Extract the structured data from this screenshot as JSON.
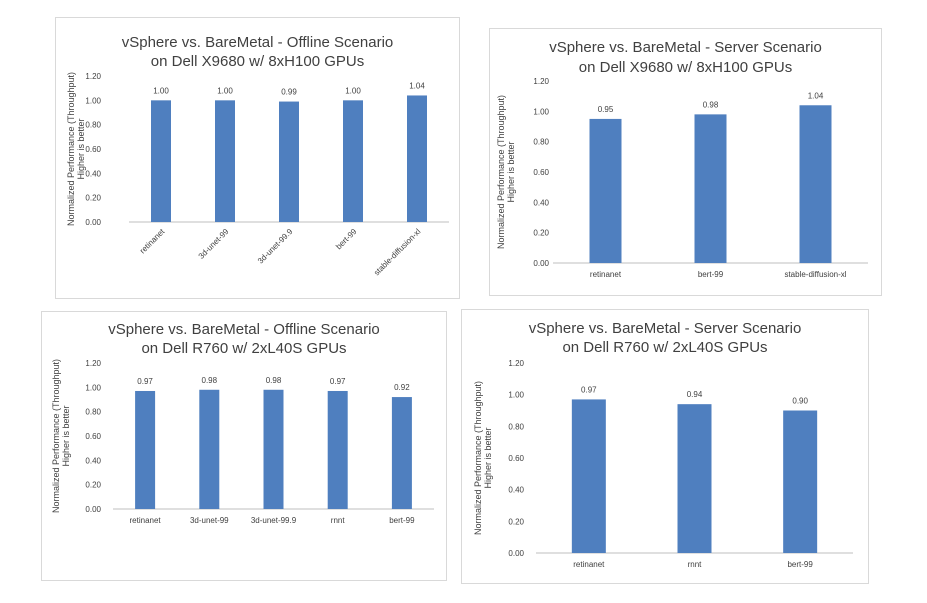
{
  "colors": {
    "bar": "#4f7fbf",
    "axis": "#bfbfbf",
    "text": "#404040"
  },
  "chart_data": [
    {
      "type": "bar",
      "title": [
        "vSphere vs. BareMetal - Offline Scenario",
        "on Dell X9680 w/ 8xH100 GPUs"
      ],
      "ylabel": [
        "Normalized Performance (Throughput)",
        "Higher is better"
      ],
      "categories": [
        "retinanet",
        "3d-unet-99",
        "3d-unet-99.9",
        "bert-99",
        "stable-diffusion-xl"
      ],
      "values": [
        1.0,
        1.0,
        0.99,
        1.0,
        1.04
      ],
      "labels": [
        "1.00",
        "1.00",
        "0.99",
        "1.00",
        "1.04"
      ],
      "ylim": [
        0,
        1.2
      ],
      "yticks": [
        "0.00",
        "0.20",
        "0.40",
        "0.60",
        "0.80",
        "1.00",
        "1.20"
      ],
      "grid": false,
      "rotated_categories": true
    },
    {
      "type": "bar",
      "title": [
        "vSphere vs. BareMetal - Server Scenario",
        "on Dell X9680 w/ 8xH100 GPUs"
      ],
      "ylabel": [
        "Normalized Performance (Throughput)",
        "Higher is better"
      ],
      "categories": [
        "retinanet",
        "bert-99",
        "stable-diffusion-xl"
      ],
      "values": [
        0.95,
        0.98,
        1.04
      ],
      "labels": [
        "0.95",
        "0.98",
        "1.04"
      ],
      "ylim": [
        0,
        1.2
      ],
      "yticks": [
        "0.00",
        "0.20",
        "0.40",
        "0.60",
        "0.80",
        "1.00",
        "1.20"
      ],
      "grid": false,
      "rotated_categories": false
    },
    {
      "type": "bar",
      "title": [
        "vSphere vs. BareMetal - Offline Scenario",
        "on Dell R760 w/ 2xL40S GPUs"
      ],
      "ylabel": [
        "Normalized Performance (Throughput)",
        "Higher is better"
      ],
      "categories": [
        "retinanet",
        "3d-unet-99",
        "3d-unet-99.9",
        "rnnt",
        "bert-99"
      ],
      "values": [
        0.97,
        0.98,
        0.98,
        0.97,
        0.92
      ],
      "labels": [
        "0.97",
        "0.98",
        "0.98",
        "0.97",
        "0.92"
      ],
      "ylim": [
        0,
        1.2
      ],
      "yticks": [
        "0.00",
        "0.20",
        "0.40",
        "0.60",
        "0.80",
        "1.00",
        "1.20"
      ],
      "grid": false,
      "rotated_categories": false
    },
    {
      "type": "bar",
      "title": [
        "vSphere vs. BareMetal - Server Scenario",
        "on Dell R760 w/ 2xL40S GPUs"
      ],
      "ylabel": [
        "Normalized Performance (Throughput)",
        "Higher is better"
      ],
      "categories": [
        "retinanet",
        "rnnt",
        "bert-99"
      ],
      "values": [
        0.97,
        0.94,
        0.9
      ],
      "labels": [
        "0.97",
        "0.94",
        "0.90"
      ],
      "ylim": [
        0,
        1.2
      ],
      "yticks": [
        "0.00",
        "0.20",
        "0.40",
        "0.60",
        "0.80",
        "1.00",
        "1.20"
      ],
      "grid": false,
      "rotated_categories": false
    }
  ]
}
